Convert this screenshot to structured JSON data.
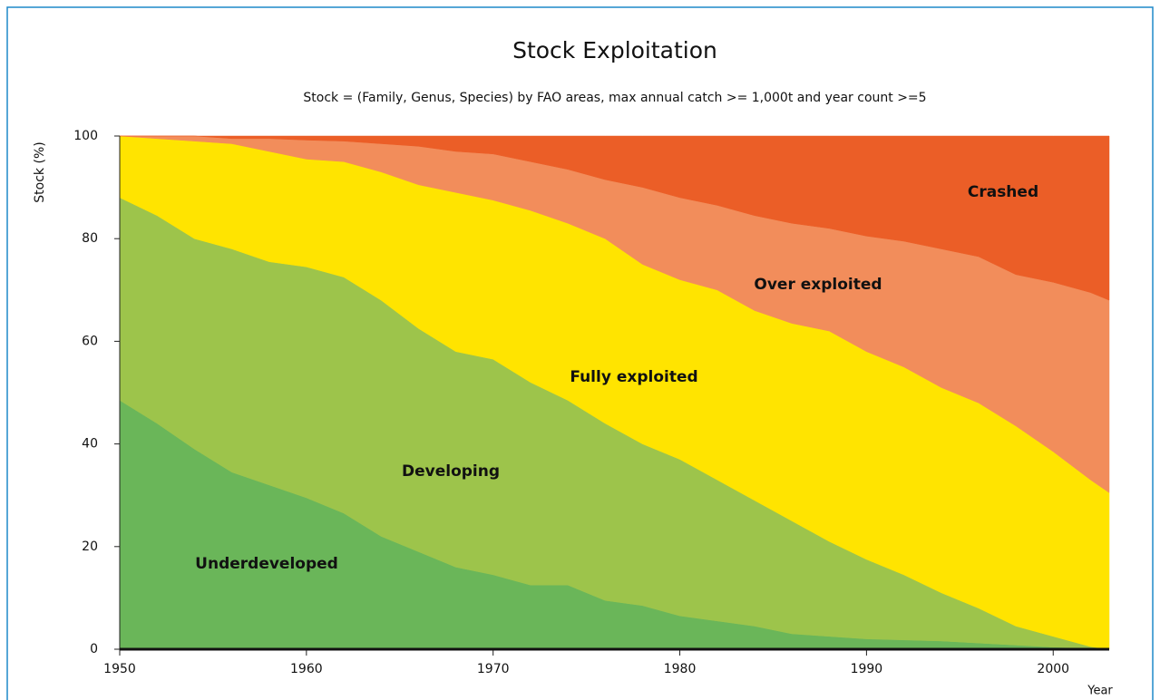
{
  "chart_data": {
    "type": "stacked-area",
    "title": "Stock Exploitation",
    "subtitle": "Stock = (Family, Genus, Species) by FAO areas, max annual catch >= 1,000t and year count >=5",
    "x_label": "Year",
    "y_label": "Stock (%)",
    "x": [
      1950,
      1952,
      1954,
      1956,
      1958,
      1960,
      1962,
      1964,
      1966,
      1968,
      1970,
      1972,
      1974,
      1976,
      1978,
      1980,
      1982,
      1984,
      1986,
      1988,
      1990,
      1992,
      1994,
      1996,
      1998,
      2000,
      2002,
      2003
    ],
    "series": [
      {
        "name": "Underdeveloped",
        "color": "#6ab659",
        "values": [
          48.5,
          44,
          39,
          34.5,
          32,
          29.5,
          26.5,
          22,
          19,
          16,
          14.5,
          12.5,
          12.5,
          9.5,
          8.5,
          6.5,
          5.5,
          4.5,
          3,
          2.5,
          2,
          1.8,
          1.6,
          1.2,
          0.8,
          0.4,
          0.2,
          0
        ]
      },
      {
        "name": "Developing",
        "color": "#9dc44b",
        "values": [
          39.5,
          40.5,
          41,
          43.5,
          43.5,
          45,
          46,
          46,
          43.5,
          42,
          42,
          39.5,
          36,
          34.5,
          31.5,
          30.5,
          27.5,
          24.5,
          22,
          18.5,
          15.5,
          12.7,
          9.4,
          6.8,
          3.7,
          2.1,
          0.3,
          0
        ]
      },
      {
        "name": "Fully exploited",
        "color": "#ffe400",
        "values": [
          12,
          15,
          19,
          20.5,
          21.5,
          21,
          22.5,
          25,
          28,
          31,
          31,
          33.5,
          34.5,
          36,
          35,
          35,
          37,
          37,
          38.5,
          41,
          40.5,
          40.5,
          40,
          40,
          39,
          36,
          32.5,
          30.5
        ]
      },
      {
        "name": "Over exploited",
        "color": "#f28d5b",
        "values": [
          0,
          0.5,
          1,
          1,
          2.5,
          3.7,
          4,
          5.5,
          7.5,
          8,
          9,
          9.5,
          10.5,
          11.5,
          15,
          16,
          16.5,
          18.5,
          19.5,
          20,
          22.5,
          24.5,
          27,
          28.5,
          29.5,
          33,
          36.5,
          37.5
        ]
      },
      {
        "name": "Crashed",
        "color": "#eb5e27",
        "values": [
          0,
          0,
          0,
          0.5,
          0.5,
          0.8,
          1,
          1.5,
          2,
          3,
          3.5,
          5,
          6.5,
          8.5,
          10,
          12,
          13.5,
          15.5,
          17,
          18,
          19.5,
          20.5,
          22,
          23.5,
          27,
          28.5,
          30.5,
          32
        ]
      }
    ],
    "xlim": [
      1950,
      2003
    ],
    "xticks": [
      1950,
      1960,
      1970,
      1980,
      1990,
      2000
    ],
    "ylim": [
      0,
      100
    ],
    "yticks": [
      0,
      20,
      40,
      60,
      80,
      100
    ]
  }
}
